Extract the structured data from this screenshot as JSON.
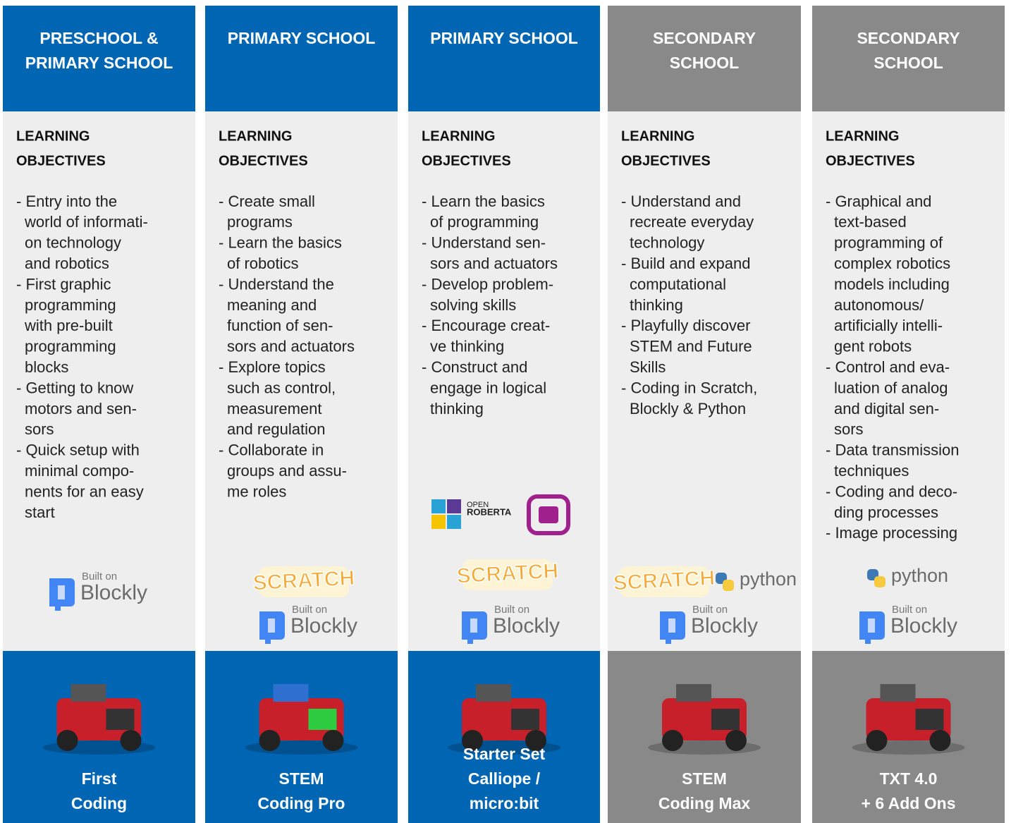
{
  "columns": [
    {
      "header": [
        "PRESCHOOL &",
        "PRIMARY SCHOOL"
      ],
      "color": "#0066b3",
      "objectives_title": [
        "LEARNING",
        "OBJECTIVES"
      ],
      "items": [
        [
          "- Entry into the",
          "world of informati-",
          "on technology",
          "and robotics"
        ],
        [
          "- First graphic",
          "programming",
          "with pre-built",
          "programming",
          "blocks"
        ],
        [
          "- Getting to know",
          "motors and sen-",
          "sors"
        ],
        [
          "- Quick setup with",
          "minimal compo-",
          "nents for an easy",
          "start"
        ]
      ],
      "logos": {
        "blockly": [
          "Built on",
          "Blockly"
        ]
      },
      "product": [
        "First",
        "Coding"
      ]
    },
    {
      "header": [
        "PRIMARY SCHOOL"
      ],
      "color": "#0066b3",
      "objectives_title": [
        "LEARNING",
        "OBJECTIVES"
      ],
      "items": [
        [
          "- Create small",
          "programs"
        ],
        [
          "- Learn the basics",
          "of robotics"
        ],
        [
          "- Understand the",
          "meaning and",
          "function of sen-",
          "sors and actuators"
        ],
        [
          "- Explore topics",
          "such as control,",
          "measurement",
          "and regulation"
        ],
        [
          "- Collaborate in",
          "groups and assu-",
          "me roles"
        ]
      ],
      "logos": {
        "scratch": "SCRATCH",
        "blockly": [
          "Built on",
          "Blockly"
        ]
      },
      "product": [
        "STEM",
        "Coding Pro"
      ]
    },
    {
      "header": [
        "PRIMARY SCHOOL"
      ],
      "color": "#0066b3",
      "objectives_title": [
        "LEARNING",
        "OBJECTIVES"
      ],
      "items": [
        [
          "- Learn the basics",
          "of programming"
        ],
        [
          "- Understand sen-",
          "sors and actuators"
        ],
        [
          "- Develop problem-",
          "solving skills"
        ],
        [
          "- Encourage creat-",
          "ve thinking"
        ],
        [
          "- Construct and",
          "engage in logical",
          "thinking"
        ]
      ],
      "logos": {
        "roberta": [
          "OPEN",
          "ROBERTA"
        ],
        "scratch": "SCRATCH",
        "blockly": [
          "Built on",
          "Blockly"
        ]
      },
      "product": [
        "Starter Set",
        "Calliope /",
        "micro:bit"
      ]
    },
    {
      "header": [
        "SECONDARY",
        "SCHOOL"
      ],
      "color": "#898989",
      "objectives_title": [
        "LEARNING",
        "OBJECTIVES"
      ],
      "items": [
        [
          "- Understand and",
          "recreate everyday",
          "technology"
        ],
        [
          "- Build and expand",
          "computational",
          "thinking"
        ],
        [
          "- Playfully discover",
          "STEM and Future",
          "Skills"
        ],
        [
          "- Coding in Scratch,",
          "Blockly & Python"
        ]
      ],
      "logos": {
        "scratch": "SCRATCH",
        "python": "python",
        "blockly": [
          "Built on",
          "Blockly"
        ]
      },
      "product": [
        "STEM",
        "Coding Max"
      ]
    },
    {
      "header": [
        "SECONDARY",
        "SCHOOL"
      ],
      "color": "#898989",
      "objectives_title": [
        "LEARNING",
        "OBJECTIVES"
      ],
      "items": [
        [
          "- Graphical and",
          "text-based",
          "programming of",
          "complex robotics",
          "models including",
          "autonomous/",
          "artificially intelli-",
          "gent robots"
        ],
        [
          "- Control and eva-",
          "luation of analog",
          "and digital sen-",
          "sors"
        ],
        [
          "- Data transmission",
          "techniques"
        ],
        [
          "- Coding and deco-",
          "ding processes"
        ],
        [
          "- Image processing"
        ]
      ],
      "logos": {
        "python": "python",
        "blockly": [
          "Built on",
          "Blockly"
        ]
      },
      "product": [
        "TXT 4.0",
        "+ 6 Add Ons"
      ]
    }
  ]
}
